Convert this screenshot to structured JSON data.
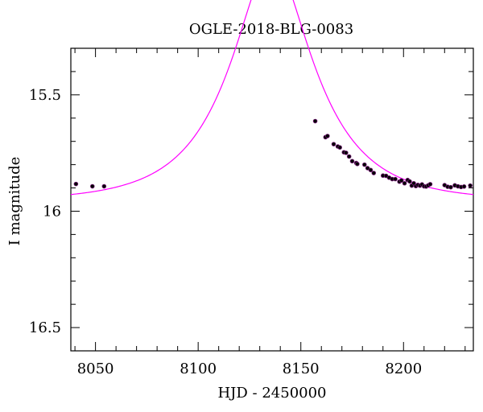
{
  "chart_data": {
    "type": "scatter",
    "title": "OGLE-2018-BLG-0083",
    "xlabel": "HJD - 2450000",
    "ylabel": "I magnitude",
    "xlim": [
      8038,
      8234
    ],
    "ylim": [
      16.6,
      15.3
    ],
    "y_inverted": true,
    "grid": false,
    "x_ticks": [
      8050,
      8100,
      8150,
      8200
    ],
    "x_tick_labels": [
      "8050",
      "8100",
      "8150",
      "8200"
    ],
    "y_ticks": [
      15.5,
      16,
      16.5
    ],
    "y_tick_labels": [
      "15.5",
      "16",
      "16.5"
    ],
    "colors": {
      "model": "#ff00ff",
      "points": "#000000",
      "point_edge": "#7a1f7a"
    },
    "series": [
      {
        "kind": "points",
        "x": [
          8040.5,
          8048.5,
          8054.2,
          8157.0,
          8162.0,
          8163.0,
          8166.0,
          8168.0,
          8169.0,
          8171.0,
          8172.0,
          8173.5,
          8175.0,
          8177.0,
          8177.5,
          8181.0,
          8182.5,
          8184.0,
          8185.5,
          8190.0,
          8191.5,
          8193.0,
          8194.5,
          8196.0,
          8198.0,
          8199.0,
          8200.5,
          8202.0,
          8203.0,
          8204.0,
          8205.0,
          8206.0,
          8207.0,
          8208.0,
          8209.0,
          8210.0,
          8211.0,
          8212.0,
          8213.0,
          8220.0,
          8221.5,
          8223.0,
          8225.0,
          8226.5,
          8228.0,
          8229.5,
          8232.5
        ],
        "y": [
          15.883,
          15.893,
          15.893,
          15.613,
          15.682,
          15.677,
          15.712,
          15.722,
          15.726,
          15.747,
          15.749,
          15.765,
          15.785,
          15.793,
          15.797,
          15.8,
          15.815,
          15.823,
          15.836,
          15.847,
          15.848,
          15.856,
          15.862,
          15.862,
          15.873,
          15.868,
          15.88,
          15.866,
          15.872,
          15.89,
          15.88,
          15.892,
          15.887,
          15.89,
          15.885,
          15.893,
          15.894,
          15.889,
          15.884,
          15.888,
          15.895,
          15.897,
          15.889,
          15.893,
          15.896,
          15.894,
          15.89
        ]
      },
      {
        "kind": "model",
        "t0": 8136.0,
        "tE": 38.0,
        "u0": 0.41,
        "baseline": 15.957
      }
    ]
  }
}
